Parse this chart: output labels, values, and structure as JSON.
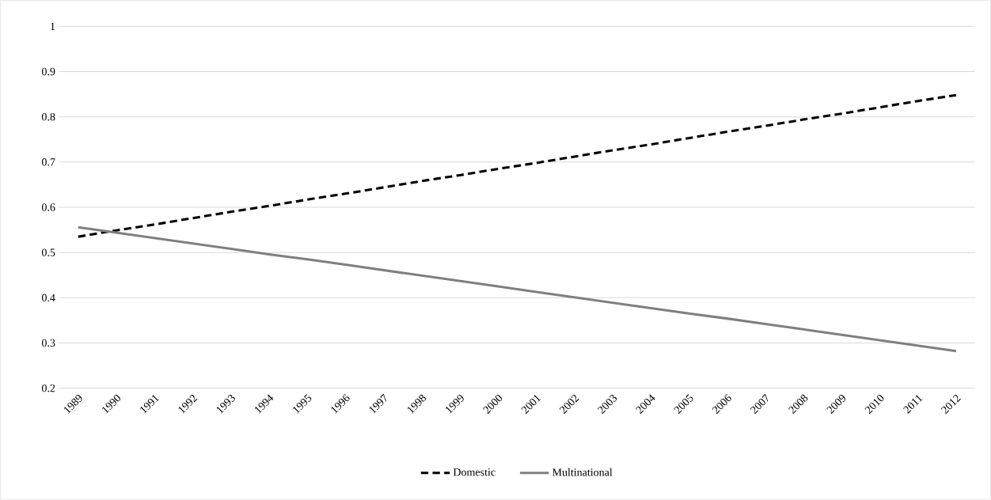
{
  "chart_data": {
    "type": "line",
    "categories": [
      "1989",
      "1990",
      "1991",
      "1992",
      "1993",
      "1994",
      "1995",
      "1996",
      "1997",
      "1998",
      "1999",
      "2000",
      "2001",
      "2002",
      "2003",
      "2004",
      "2005",
      "2006",
      "2007",
      "2008",
      "2009",
      "2010",
      "2011",
      "2012"
    ],
    "series": [
      {
        "name": "Domestic",
        "color": "#000000",
        "line_style": "dashed",
        "values": [
          0.535,
          0.549,
          0.562,
          0.576,
          0.59,
          0.603,
          0.617,
          0.63,
          0.644,
          0.658,
          0.671,
          0.685,
          0.698,
          0.712,
          0.726,
          0.739,
          0.753,
          0.767,
          0.78,
          0.794,
          0.807,
          0.821,
          0.835,
          0.848
        ]
      },
      {
        "name": "Multinational",
        "color": "#7f7f7f",
        "line_style": "solid",
        "values": [
          0.556,
          0.544,
          0.532,
          0.52,
          0.508,
          0.496,
          0.485,
          0.473,
          0.461,
          0.449,
          0.437,
          0.425,
          0.413,
          0.401,
          0.389,
          0.377,
          0.365,
          0.354,
          0.342,
          0.33,
          0.318,
          0.306,
          0.294,
          0.282
        ]
      }
    ],
    "ylim": [
      0.2,
      1
    ],
    "yticks": [
      0.2,
      0.3,
      0.4,
      0.5,
      0.6,
      0.7,
      0.8,
      0.9,
      1
    ],
    "grid": "y",
    "legend": "bottom"
  }
}
